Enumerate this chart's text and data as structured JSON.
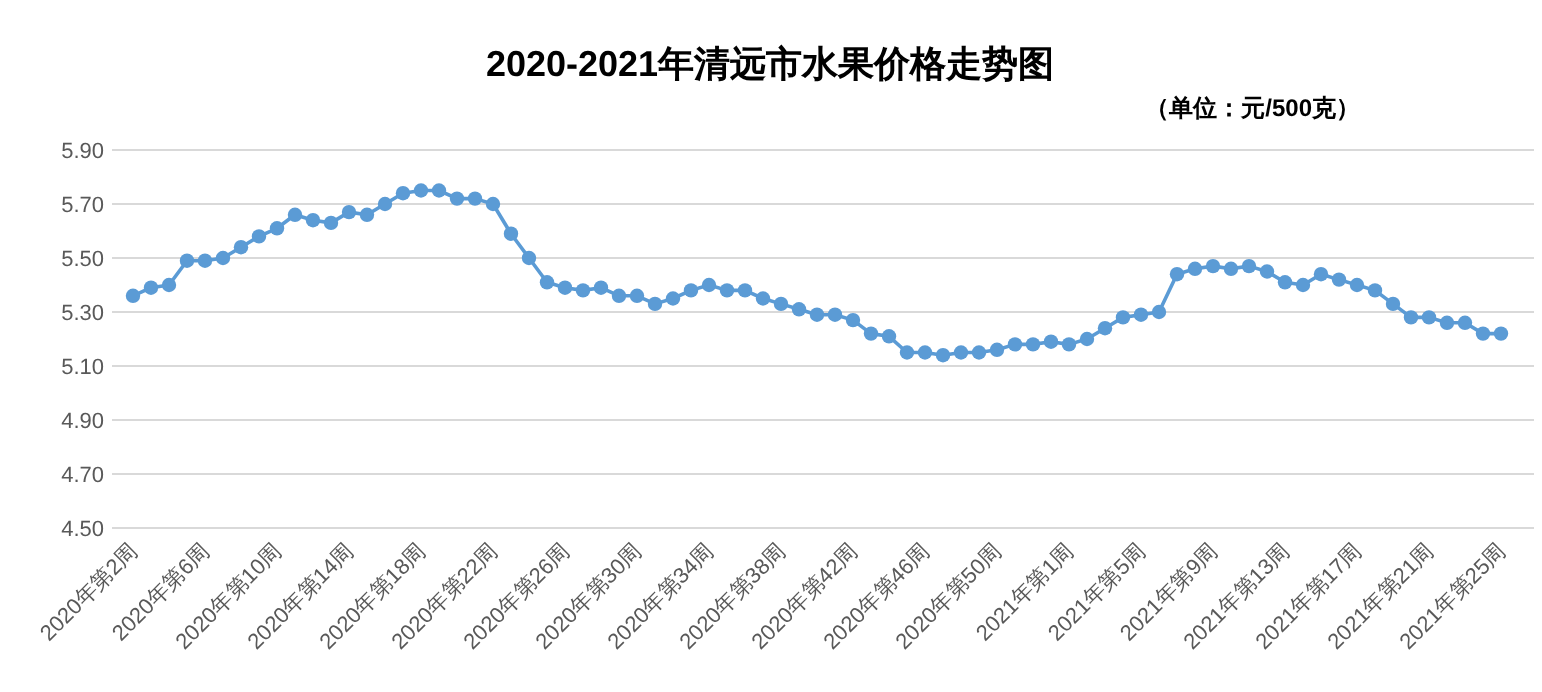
{
  "chart_data": {
    "type": "line",
    "title": "2020-2021年清远市水果价格走势图",
    "subtitle": "（单位：元/500克）",
    "categories": [
      "2020年第2周",
      null,
      null,
      null,
      "2020年第6周",
      null,
      null,
      null,
      "2020年第10周",
      null,
      null,
      null,
      "2020年第14周",
      null,
      null,
      null,
      "2020年第18周",
      null,
      null,
      null,
      "2020年第22周",
      null,
      null,
      null,
      "2020年第26周",
      null,
      null,
      null,
      "2020年第30周",
      null,
      null,
      null,
      "2020年第34周",
      null,
      null,
      null,
      "2020年第38周",
      null,
      null,
      null,
      "2020年第42周",
      null,
      null,
      null,
      "2020年第46周",
      null,
      null,
      null,
      "2020年第50周",
      null,
      null,
      null,
      "2021年第1周",
      null,
      null,
      null,
      "2021年第5周",
      null,
      null,
      null,
      "2021年第9周",
      null,
      null,
      null,
      "2021年第13周",
      null,
      null,
      null,
      "2021年第17周",
      null,
      null,
      null,
      "2021年第21周",
      null,
      null,
      null,
      "2021年第25周"
    ],
    "series": [
      {
        "color": "#5b9bd5",
        "values": [
          5.36,
          5.39,
          5.4,
          5.49,
          5.49,
          5.5,
          5.54,
          5.58,
          5.61,
          5.66,
          5.64,
          5.63,
          5.67,
          5.66,
          5.7,
          5.74,
          5.75,
          5.75,
          5.72,
          5.72,
          5.7,
          5.59,
          5.5,
          5.41,
          5.39,
          5.38,
          5.39,
          5.36,
          5.36,
          5.33,
          5.35,
          5.38,
          5.4,
          5.38,
          5.38,
          5.35,
          5.33,
          5.31,
          5.29,
          5.29,
          5.27,
          5.22,
          5.21,
          5.15,
          5.15,
          5.14,
          5.15,
          5.15,
          5.16,
          5.18,
          5.18,
          5.19,
          5.18,
          5.2,
          5.24,
          5.28,
          5.29,
          5.3,
          5.44,
          5.46,
          5.47,
          5.46,
          5.47,
          5.45,
          5.41,
          5.4,
          5.44,
          5.42,
          5.4,
          5.38,
          5.33,
          5.28,
          5.28,
          5.26,
          5.26,
          5.22,
          5.22
        ]
      }
    ],
    "ylim": [
      4.5,
      5.9
    ],
    "yticks": [
      {
        "value": 4.5,
        "label": "4.50"
      },
      {
        "value": 4.7,
        "label": "4.70"
      },
      {
        "value": 4.9,
        "label": "4.90"
      },
      {
        "value": 5.1,
        "label": "5.10"
      },
      {
        "value": 5.3,
        "label": "5.30"
      },
      {
        "value": 5.5,
        "label": "5.50"
      },
      {
        "value": 5.7,
        "label": "5.70"
      },
      {
        "value": 5.9,
        "label": "5.90"
      }
    ],
    "grid": "y",
    "marker": "circle",
    "line_style": "solid"
  }
}
